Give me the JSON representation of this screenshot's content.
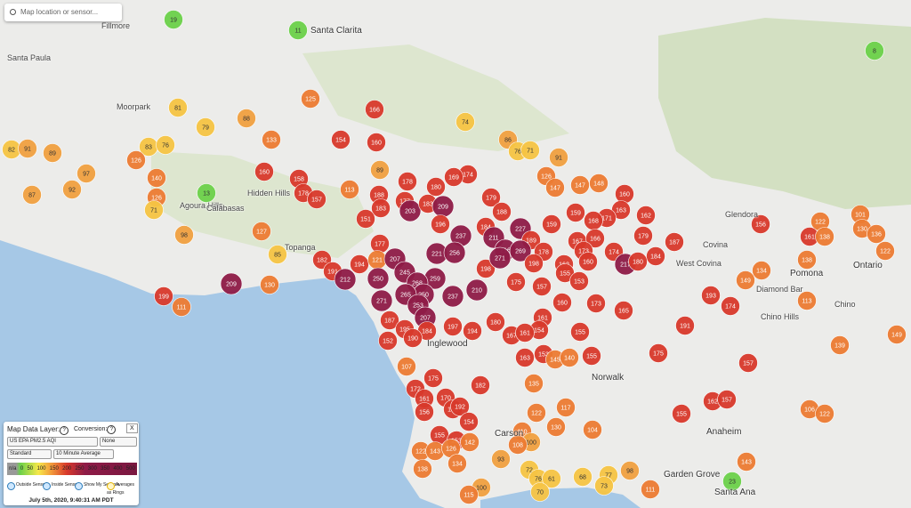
{
  "search": {
    "placeholder": "Map location or sensor..."
  },
  "places": [
    "Santa Clarita",
    "Fillmore",
    "Santa Paula",
    "Moorpark",
    "Agoura Hills",
    "Hidden Hills",
    "Calabasas",
    "Topanga",
    "Inglewood",
    "Norwalk",
    "Carson",
    "Anaheim",
    "Garden Grove",
    "Santa Ana",
    "West Covina",
    "Covina",
    "Glendora",
    "Pomona",
    "Ontario",
    "Diamond Bar",
    "Chino",
    "Chino Hills"
  ],
  "panel": {
    "layer_label": "Map Data Layer:",
    "help": "?",
    "conversion_label": "Conversion:",
    "close": "X",
    "layer": "US EPA PM2.5 AQI",
    "conversion": "None",
    "style": "Standard",
    "average": "10 Minute Average",
    "scale": [
      "n/a",
      "0",
      "50",
      "100",
      "150",
      "200",
      "250",
      "300",
      "350",
      "400",
      "500"
    ],
    "checks": [
      "Outside Sensors",
      "Inside Sensors",
      "Show My Sensors",
      "Averages as Rings"
    ],
    "timestamp": "July 5th, 2020, 9:40:31 AM PDT"
  },
  "sensors": [
    19,
    11,
    8,
    125,
    166,
    74,
    81,
    88,
    79,
    133,
    154,
    160,
    86,
    76,
    71,
    82,
    91,
    83,
    89,
    76,
    126,
    91,
    97,
    140,
    160,
    89,
    158,
    174,
    169,
    180,
    178,
    126,
    147,
    147,
    148,
    160,
    87,
    92,
    126,
    13,
    178,
    157,
    113,
    188,
    177,
    183,
    203,
    183,
    209,
    179,
    71,
    188,
    163,
    162,
    159,
    171,
    168,
    156,
    122,
    101,
    130,
    136,
    151,
    196,
    184,
    227,
    159,
    179,
    187,
    161,
    138,
    98,
    127,
    177,
    237,
    189,
    167,
    166,
    221,
    256,
    211,
    216,
    269,
    178,
    173,
    174,
    184,
    122,
    85,
    182,
    194,
    121,
    207,
    198,
    162,
    217,
    180,
    138,
    191,
    245,
    198,
    271,
    259,
    175,
    155,
    160,
    212,
    250,
    268,
    250,
    153,
    134,
    149,
    209,
    130,
    199,
    265,
    237,
    210,
    157,
    193,
    113,
    271,
    253,
    160,
    173,
    174,
    111,
    165,
    187,
    207,
    180,
    161,
    191,
    195,
    184,
    197,
    194,
    154,
    190,
    167,
    161,
    155,
    152,
    149,
    139,
    175,
    163,
    153,
    145,
    140,
    155,
    107,
    157,
    175,
    182,
    135,
    172,
    170,
    161,
    183,
    192,
    156,
    162,
    157,
    155,
    117,
    106,
    122,
    122,
    154,
    130,
    155,
    153,
    142,
    104,
    110,
    100,
    108,
    122,
    143,
    126,
    134,
    143,
    93,
    138,
    98,
    72,
    76,
    61,
    68,
    77,
    73,
    100,
    70,
    115,
    23,
    111
  ]
}
